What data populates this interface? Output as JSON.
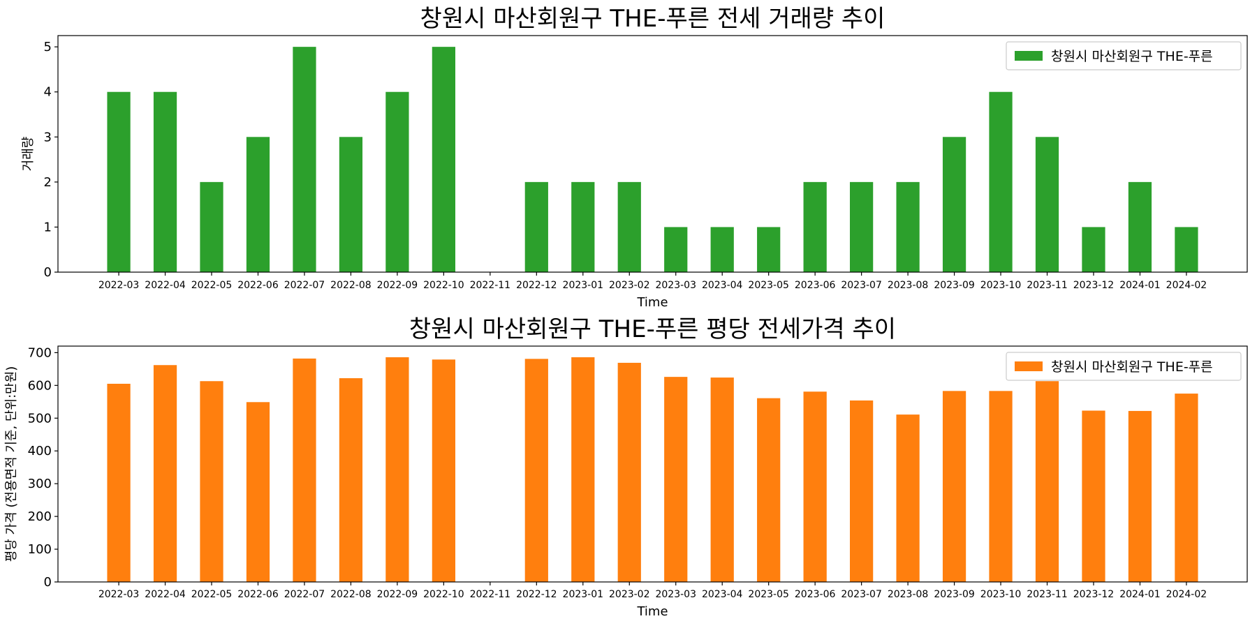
{
  "chart_data": [
    {
      "type": "bar",
      "title": "창원시 마산회원구 THE-푸른 전세 거래량 추이",
      "xlabel": "Time",
      "ylabel": "거래량",
      "ylim": [
        0,
        5.25
      ],
      "yticks": [
        0,
        1,
        2,
        3,
        4,
        5
      ],
      "grid": false,
      "legend_position": "top-right",
      "categories": [
        "2022-03",
        "2022-04",
        "2022-05",
        "2022-06",
        "2022-07",
        "2022-08",
        "2022-09",
        "2022-10",
        "2022-11",
        "2022-12",
        "2023-01",
        "2023-02",
        "2023-03",
        "2023-04",
        "2023-05",
        "2023-06",
        "2023-07",
        "2023-08",
        "2023-09",
        "2023-10",
        "2023-11",
        "2023-12",
        "2024-01",
        "2024-02"
      ],
      "series": [
        {
          "name": "창원시 마산회원구 THE-푸른",
          "color": "#2ca02c",
          "values": [
            4,
            4,
            2,
            3,
            5,
            3,
            4,
            5,
            null,
            2,
            2,
            2,
            1,
            1,
            1,
            2,
            2,
            2,
            3,
            4,
            3,
            1,
            2,
            1
          ]
        }
      ]
    },
    {
      "type": "bar",
      "title": "창원시 마산회원구 THE-푸른 평당 전세가격 추이",
      "xlabel": "Time",
      "ylabel": "평당 가격 (전용면적 기준, 단위:만원)",
      "ylim": [
        0,
        720
      ],
      "yticks": [
        0,
        100,
        200,
        300,
        400,
        500,
        600,
        700
      ],
      "grid": false,
      "legend_position": "top-right",
      "categories": [
        "2022-03",
        "2022-04",
        "2022-05",
        "2022-06",
        "2022-07",
        "2022-08",
        "2022-09",
        "2022-10",
        "2022-11",
        "2022-12",
        "2023-01",
        "2023-02",
        "2023-03",
        "2023-04",
        "2023-05",
        "2023-06",
        "2023-07",
        "2023-08",
        "2023-09",
        "2023-10",
        "2023-11",
        "2023-12",
        "2024-01",
        "2024-02"
      ],
      "series": [
        {
          "name": "창원시 마산회원구 THE-푸른",
          "color": "#ff7f0e",
          "values": [
            605,
            662,
            613,
            549,
            682,
            622,
            686,
            679,
            null,
            681,
            686,
            669,
            626,
            624,
            561,
            581,
            554,
            511,
            583,
            583,
            613,
            523,
            522,
            575
          ]
        }
      ]
    }
  ]
}
